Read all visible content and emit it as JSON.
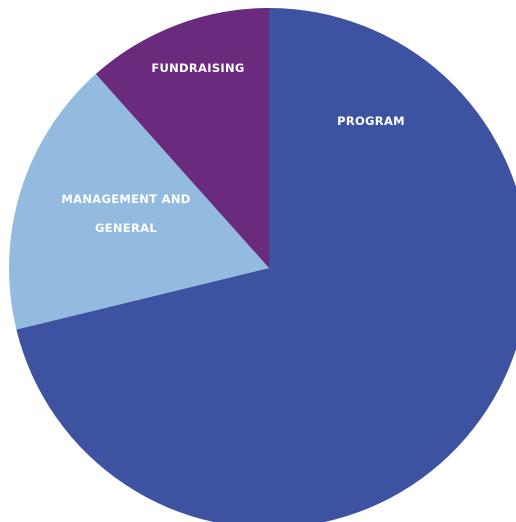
{
  "chart_data": {
    "type": "pie",
    "title": "",
    "legend": "none",
    "start": "12 o'clock",
    "direction": "clockwise",
    "slices": [
      {
        "label": "PROGRAM",
        "label_lines": [
          "PROGRAM"
        ],
        "value": 71.2,
        "color": "#3e52a2"
      },
      {
        "label": "MANAGEMENT AND GENERAL",
        "label_lines": [
          "MANAGEMENT AND",
          "GENERAL"
        ],
        "value": 17.2,
        "color": "#92bbdf"
      },
      {
        "label": "FUNDRAISING",
        "label_lines": [
          "FUNDRAISING"
        ],
        "value": 11.6,
        "color": "#6a2a7d"
      }
    ]
  }
}
